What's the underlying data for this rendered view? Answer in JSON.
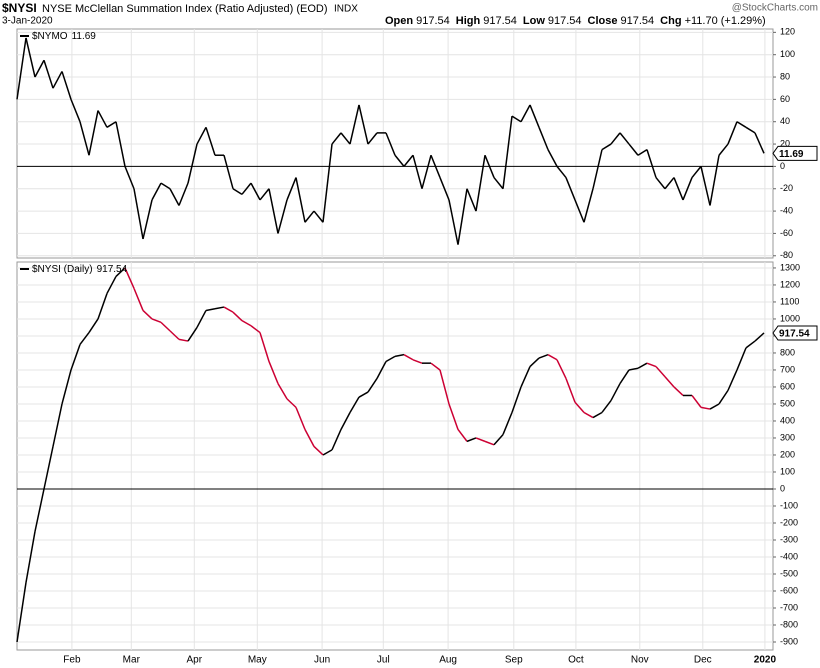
{
  "header": {
    "symbol": "$NYSI",
    "name": "NYSE McClellan Summation Index (Ratio Adjusted) (EOD)",
    "exchange": "INDX",
    "date": "3-Jan-2020",
    "source": "@StockCharts.com",
    "quote": [
      {
        "label": "Open",
        "value": 917.54
      },
      {
        "label": "High",
        "value": 917.54
      },
      {
        "label": "Low",
        "value": 917.54
      },
      {
        "label": "Close",
        "value": 917.54
      },
      {
        "label": "Chg",
        "value": "+11.70 (+1.29%)"
      }
    ]
  },
  "chart_data": [
    {
      "type": "line",
      "series": [
        {
          "name": "$NYMO",
          "color": "#000000",
          "values": [
            60,
            115,
            80,
            95,
            70,
            85,
            60,
            40,
            10,
            50,
            35,
            40,
            0,
            -20,
            -65,
            -30,
            -15,
            -20,
            -35,
            -15,
            20,
            35,
            10,
            10,
            -20,
            -25,
            -15,
            -30,
            -20,
            -60,
            -30,
            -10,
            -50,
            -40,
            -50,
            20,
            30,
            20,
            55,
            20,
            30,
            30,
            10,
            0,
            10,
            -20,
            10,
            -10,
            -30,
            -70,
            -20,
            -40,
            10,
            -10,
            -20,
            45,
            40,
            55,
            35,
            15,
            0,
            -10,
            -30,
            -50,
            -20,
            15,
            20,
            30,
            20,
            10,
            15,
            -10,
            -20,
            -10,
            -30,
            -10,
            0,
            -35,
            10,
            20,
            40,
            35,
            30,
            11.69
          ]
        }
      ],
      "xlim": [
        0,
        84
      ],
      "ylim": [
        -82,
        123
      ],
      "yticks": [
        -80,
        -60,
        -40,
        -20,
        0,
        20,
        40,
        60,
        80,
        100,
        120
      ],
      "grid": true
    },
    {
      "type": "line",
      "series": [
        {
          "name": "$NYSI (Daily)",
          "color": "#000000",
          "down_color": "#cc0033",
          "values": [
            -900,
            -550,
            -250,
            0,
            250,
            500,
            700,
            850,
            920,
            1000,
            1150,
            1250,
            1300,
            1180,
            1050,
            1000,
            980,
            930,
            880,
            870,
            950,
            1050,
            1060,
            1070,
            1040,
            990,
            960,
            920,
            750,
            620,
            530,
            480,
            350,
            250,
            200,
            230,
            350,
            450,
            540,
            570,
            650,
            750,
            780,
            790,
            760,
            740,
            740,
            700,
            500,
            350,
            280,
            300,
            280,
            260,
            320,
            450,
            600,
            720,
            770,
            790,
            760,
            650,
            510,
            450,
            420,
            450,
            520,
            620,
            700,
            710,
            740,
            720,
            660,
            600,
            550,
            550,
            480,
            470,
            500,
            580,
            700,
            830,
            870,
            917.54
          ]
        }
      ],
      "xlim": [
        0,
        84
      ],
      "ylim": [
        -947,
        1335
      ],
      "yticks": [
        -900,
        -800,
        -700,
        -600,
        -500,
        -400,
        -300,
        -200,
        -100,
        0,
        100,
        200,
        300,
        400,
        500,
        600,
        700,
        800,
        900,
        1000,
        1100,
        1200,
        1300
      ],
      "xticks": [
        {
          "value": 6.1,
          "label": "Feb"
        },
        {
          "value": 12.7,
          "label": "Mar"
        },
        {
          "value": 19.7,
          "label": "Apr"
        },
        {
          "value": 26.7,
          "label": "May"
        },
        {
          "value": 33.9,
          "label": "Jun"
        },
        {
          "value": 40.7,
          "label": "Jul"
        },
        {
          "value": 47.9,
          "label": "Aug"
        },
        {
          "value": 55.2,
          "label": "Sep"
        },
        {
          "value": 62.1,
          "label": "Oct"
        },
        {
          "value": 69.2,
          "label": "Nov"
        },
        {
          "value": 76.2,
          "label": "Dec"
        },
        {
          "value": 83.1,
          "label": "2020"
        }
      ],
      "grid": true
    }
  ]
}
